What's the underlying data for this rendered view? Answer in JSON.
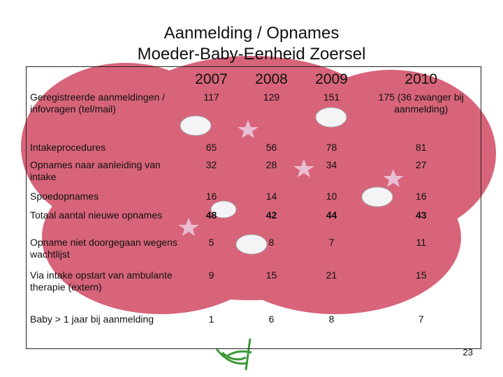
{
  "slide": {
    "title_line1": "Aanmelding / Opnames",
    "title_line2": "Moeder-Baby-Eenheid Zoersel",
    "page_number": "23"
  },
  "table": {
    "headers": [
      "",
      "2007",
      "2008",
      "2009",
      "2010"
    ],
    "rows": [
      {
        "label": "Geregistreerde aanmeldingen / infovragen (tel/mail)",
        "values": [
          "117",
          "129",
          "151",
          "175 (36 zwanger bij aanmelding)"
        ],
        "bold": false
      },
      {
        "label": "Intakeprocedures",
        "values": [
          "65",
          "56",
          "78",
          "81"
        ],
        "bold": false
      },
      {
        "label": "Opnames naar aanleiding van intake",
        "values": [
          "32",
          "28",
          "34",
          "27"
        ],
        "bold": false
      },
      {
        "label": "Spoedopnames",
        "values": [
          "16",
          "14",
          "10",
          "16"
        ],
        "bold": false
      },
      {
        "label": "Totaal aantal nieuwe opnames",
        "values": [
          "48",
          "42",
          "44",
          "43"
        ],
        "bold": true
      },
      {
        "label": "Opname niet doorgegaan wegens wachtlijst",
        "values": [
          "5",
          "8",
          "7",
          "11"
        ],
        "bold": false
      },
      {
        "label": "Via intake opstart van ambulante therapie (extern)",
        "values": [
          "9",
          "15",
          "21",
          "15"
        ],
        "bold": false
      },
      {
        "label": "Baby > 1 jaar bij aanmelding",
        "values": [
          "1",
          "6",
          "8",
          "7"
        ],
        "bold": false
      }
    ]
  },
  "colors": {
    "cloud_pink": "#d55c72",
    "pill_white": "#f4f4f6",
    "star_lavender": "#e9bdd3",
    "logo_green": "#3f9a3a"
  }
}
